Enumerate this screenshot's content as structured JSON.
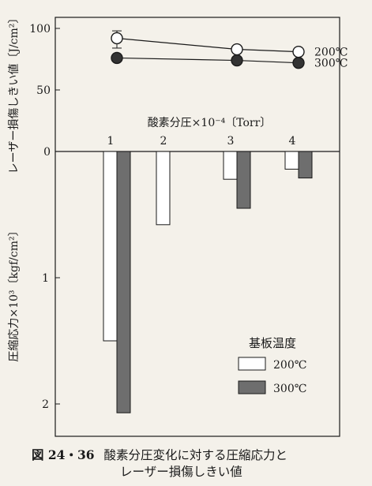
{
  "chart_data": [
    {
      "type": "line",
      "title": "",
      "ylabel": "レーザー損傷しきい値〔J/cm²〕",
      "ylim": [
        0,
        100
      ],
      "yticks": [
        "0",
        "50",
        "100"
      ],
      "xlabel": "酸素分圧×10⁻⁴〔Torr〕",
      "x": [
        1,
        3,
        4
      ],
      "xticks": [
        "1",
        "2",
        "3",
        "4"
      ],
      "series": [
        {
          "name": "200℃",
          "values": [
            92,
            83,
            81
          ],
          "marker": "open-circle"
        },
        {
          "name": "300℃",
          "values": [
            76,
            74,
            72
          ],
          "marker": "filled-circle"
        }
      ],
      "errorbar": {
        "x": 1,
        "series": "200℃",
        "low": 84,
        "high": 98
      }
    },
    {
      "type": "bar",
      "title": "",
      "ylabel": "圧縮応力×10³〔kgf/cm²〕",
      "ylim": [
        0,
        2
      ],
      "yticks": [
        "1",
        "2"
      ],
      "y_direction": "downward",
      "categories": [
        "1",
        "2",
        "3",
        "4"
      ],
      "series": [
        {
          "name": "200℃",
          "values": [
            1.5,
            0.58,
            0.22,
            0.14
          ],
          "color": "#ffffff"
        },
        {
          "name": "300℃",
          "values": [
            2.07,
            0,
            0.45,
            0.21
          ],
          "color": "#6e6e6e"
        }
      ],
      "legend_title": "基板温度",
      "legend_position": "bottom-right"
    }
  ],
  "caption": {
    "number": "図 24・36",
    "line1": "酸素分圧変化に対する圧縮応力と",
    "line2": "レーザー損傷しきい値"
  },
  "colors": {
    "bar_300": "#6e6e6e",
    "bar_200": "#ffffff",
    "ink": "#1a1a1a",
    "paper": "#f4f1ea"
  }
}
